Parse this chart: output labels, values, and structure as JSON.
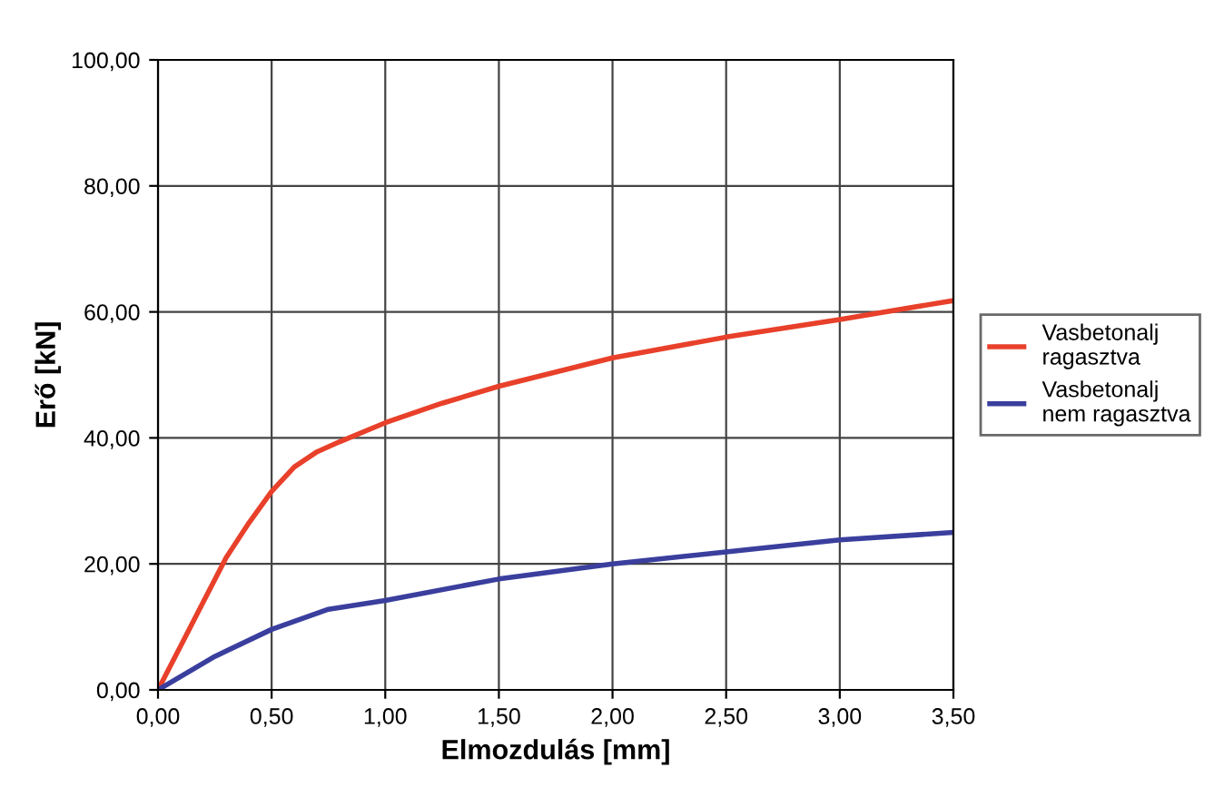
{
  "chart_data": {
    "type": "line",
    "xlabel": "Elmozdulás [mm]",
    "ylabel": "Erő [kN]",
    "xlim": [
      0,
      3.5
    ],
    "xticks": [
      {
        "value": 0,
        "label": "0,00"
      },
      {
        "value": 0.5,
        "label": "0,50"
      },
      {
        "value": 1,
        "label": "1,00"
      },
      {
        "value": 1.5,
        "label": "1,50"
      },
      {
        "value": 2,
        "label": "2,00"
      },
      {
        "value": 2.5,
        "label": "2,50"
      },
      {
        "value": 3,
        "label": "3,00"
      },
      {
        "value": 3.5,
        "label": "3,50"
      }
    ],
    "ylim": [
      0,
      100
    ],
    "yticks": [
      {
        "value": 0,
        "label": "0,00"
      },
      {
        "value": 20,
        "label": "20,00"
      },
      {
        "value": 40,
        "label": "40,00"
      },
      {
        "value": 60,
        "label": "60,00"
      },
      {
        "value": 80,
        "label": "80,00"
      },
      {
        "value": 100,
        "label": "100,00"
      }
    ],
    "grid": true,
    "legend": "right",
    "marker": "none",
    "line_style": "solid",
    "series": [
      {
        "name": "Vasbetonalj ragasztva",
        "color": "#e8402a",
        "x": [
          0,
          0.1,
          0.2,
          0.3,
          0.4,
          0.5,
          0.6,
          0.7,
          0.8,
          1.0,
          1.25,
          1.5,
          2.0,
          2.5,
          3.0,
          3.5
        ],
        "values": [
          0,
          7,
          14,
          21,
          26.5,
          31.5,
          35.4,
          37.8,
          39.4,
          42.4,
          45.5,
          48.2,
          52.7,
          56,
          58.8,
          61.8
        ]
      },
      {
        "name": "Vasbetonalj nem ragasztva",
        "color": "#3a3f9e",
        "x": [
          0,
          0.25,
          0.5,
          0.75,
          1.0,
          1.5,
          2.0,
          2.5,
          3.0,
          3.5
        ],
        "values": [
          0,
          5.3,
          9.6,
          12.8,
          14.2,
          17.6,
          20,
          21.9,
          23.8,
          25
        ]
      }
    ]
  }
}
